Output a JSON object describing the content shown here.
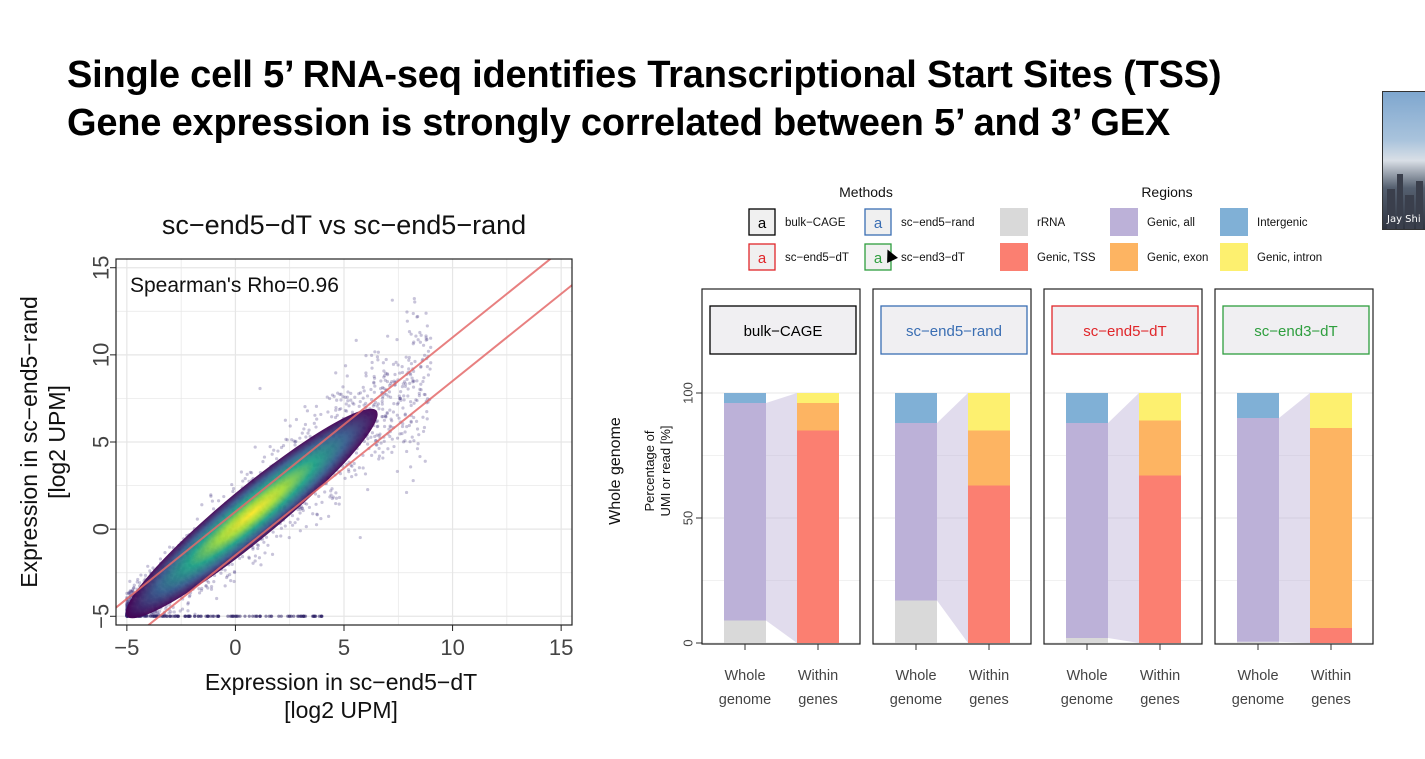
{
  "slide": {
    "title_line1": "Single cell 5’ RNA-seq identifies Transcriptional Start Sites (TSS)",
    "title_line2": "Gene expression is strongly correlated between 5’ and 3’ GEX"
  },
  "webcam": {
    "label": "Jay Shi"
  },
  "chart_data": [
    {
      "type": "scatter",
      "title": "sc−end5−dT vs sc−end5−rand",
      "xlabel": "Expression in sc−end5−dT",
      "xlabel_unit": "[log2 UPM]",
      "ylabel": "Expression in sc−end5−rand",
      "ylabel_unit": "[log2 UPM]",
      "xlim": [
        -5.5,
        15.5
      ],
      "ylim": [
        -5.5,
        15.5
      ],
      "xticks": [
        -5,
        0,
        5,
        10,
        15
      ],
      "yticks": [
        -5,
        0,
        5,
        10,
        15
      ],
      "grid": true,
      "annotation": "Spearman's Rho=0.96",
      "reference_lines": [
        {
          "slope": 1,
          "intercept": 1
        },
        {
          "slope": 1,
          "intercept": -1.5
        }
      ],
      "point_cloud": {
        "x_range": [
          -5,
          15
        ],
        "floor": -5,
        "trend_slope": 1,
        "density_center": [
          -2,
          -2
        ],
        "colormap": "viridis"
      }
    },
    {
      "type": "bar",
      "stacked": true,
      "row_label": "Whole genome",
      "ylabel": "Percentage of UMI or read [%]",
      "ylabel_lines": [
        "Percentage of",
        "UMI or read [%]"
      ],
      "ylim": [
        0,
        100
      ],
      "yticks": [
        0,
        50,
        100
      ],
      "categories": [
        "Whole genome",
        "Within genes"
      ],
      "category_lines": [
        [
          "Whole",
          "genome"
        ],
        [
          "Within",
          "genes"
        ]
      ],
      "legend": {
        "methods_title": "Methods",
        "methods": [
          {
            "name": "bulk−CAGE",
            "color": "#000000",
            "glyph": "a"
          },
          {
            "name": "sc−end5−rand",
            "color": "#3a6eb3",
            "glyph": "a"
          },
          {
            "name": "sc−end5−dT",
            "color": "#e0262a",
            "glyph": "a"
          },
          {
            "name": "sc−end3−dT",
            "color": "#2e9e3e",
            "glyph": "a"
          }
        ],
        "regions_title": "Regions",
        "regions": [
          {
            "name": "rRNA",
            "color": "#d9d9d9"
          },
          {
            "name": "Genic, all",
            "color": "#bcb1d8"
          },
          {
            "name": "Intergenic",
            "color": "#80b0d6"
          },
          {
            "name": "Genic, TSS",
            "color": "#fb7f71"
          },
          {
            "name": "Genic, exon",
            "color": "#fdb462"
          },
          {
            "name": "Genic, intron",
            "color": "#fdf06f"
          }
        ]
      },
      "stack_order": [
        "rRNA",
        "Genic, all",
        "Intergenic",
        "Genic, TSS",
        "Genic, exon",
        "Genic, intron"
      ],
      "panels": [
        {
          "method": "bulk−CAGE",
          "color": "#000000",
          "whole_genome": {
            "rRNA": 9,
            "Genic, all": 87,
            "Intergenic": 4
          },
          "within_genes": {
            "Genic, TSS": 85,
            "Genic, exon": 11,
            "Genic, intron": 4
          }
        },
        {
          "method": "sc−end5−rand",
          "color": "#3a6eb3",
          "whole_genome": {
            "rRNA": 17,
            "Genic, all": 71,
            "Intergenic": 12
          },
          "within_genes": {
            "Genic, TSS": 63,
            "Genic, exon": 22,
            "Genic, intron": 15
          }
        },
        {
          "method": "sc−end5−dT",
          "color": "#e0262a",
          "whole_genome": {
            "rRNA": 2,
            "Genic, all": 86,
            "Intergenic": 12
          },
          "within_genes": {
            "Genic, TSS": 67,
            "Genic, exon": 22,
            "Genic, intron": 11
          }
        },
        {
          "method": "sc−end3−dT",
          "color": "#2e9e3e",
          "whole_genome": {
            "rRNA": 0.5,
            "Genic, all": 89.5,
            "Intergenic": 10
          },
          "within_genes": {
            "Genic, TSS": 6,
            "Genic, exon": 80,
            "Genic, intron": 14
          }
        }
      ]
    }
  ]
}
